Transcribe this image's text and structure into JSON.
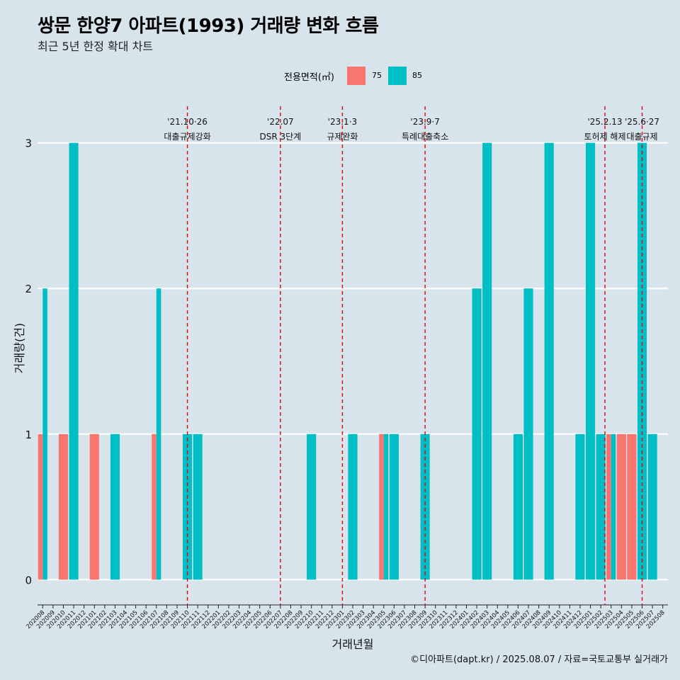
{
  "header": {
    "title": "쌍문 한양7 아파트(1993) 거래량 변화 흐름",
    "subtitle": "최근 5년 한정 확대 차트"
  },
  "legend": {
    "title": "전용면적(㎡)",
    "items": [
      {
        "label": "75",
        "color": "#f8766d"
      },
      {
        "label": "85",
        "color": "#00bfc4"
      }
    ]
  },
  "caption": "©디아파트(dapt.kr) / 2025.08.07 / 자료=국토교통부 실거래가",
  "chart_data": {
    "type": "bar",
    "xlabel": "거래년월",
    "ylabel": "거래량(건)",
    "ylim": [
      -0.12,
      3.3
    ],
    "yticks": [
      0,
      1,
      2,
      3
    ],
    "grid": "horizontal",
    "legend_position": "top",
    "categories": [
      "202008",
      "202009",
      "202010",
      "202011",
      "202012",
      "202101",
      "202102",
      "202103",
      "202104",
      "202105",
      "202106",
      "202107",
      "202108",
      "202109",
      "202110",
      "202111",
      "202112",
      "202201",
      "202202",
      "202203",
      "202204",
      "202205",
      "202206",
      "202207",
      "202208",
      "202209",
      "202210",
      "202211",
      "202212",
      "202301",
      "202302",
      "202303",
      "202304",
      "202305",
      "202306",
      "202307",
      "202308",
      "202309",
      "202310",
      "202311",
      "202312",
      "202401",
      "202402",
      "202403",
      "202404",
      "202405",
      "202406",
      "202407",
      "202408",
      "202409",
      "202410",
      "202411",
      "202412",
      "202501",
      "202502",
      "202503",
      "202504",
      "202505",
      "202506",
      "202507",
      "202508"
    ],
    "series": [
      {
        "name": "75",
        "color": "#f8766d",
        "values": [
          1,
          0,
          1,
          0,
          0,
          1,
          0,
          0,
          0,
          0,
          0,
          1,
          0,
          0,
          0,
          0,
          0,
          0,
          0,
          0,
          0,
          0,
          0,
          0,
          0,
          0,
          0,
          0,
          0,
          0,
          0,
          0,
          0,
          1,
          0,
          0,
          0,
          0,
          0,
          0,
          0,
          0,
          0,
          0,
          0,
          0,
          0,
          0,
          0,
          0,
          0,
          0,
          0,
          0,
          0,
          1,
          1,
          1,
          0,
          0,
          0
        ]
      },
      {
        "name": "85",
        "color": "#00bfc4",
        "values": [
          2,
          0,
          0,
          3,
          0,
          0,
          0,
          1,
          0,
          0,
          0,
          2,
          0,
          0,
          1,
          1,
          0,
          0,
          0,
          0,
          0,
          0,
          0,
          0,
          0,
          0,
          1,
          0,
          0,
          0,
          1,
          0,
          0,
          1,
          1,
          0,
          0,
          1,
          0,
          0,
          0,
          0,
          2,
          3,
          0,
          0,
          1,
          2,
          0,
          3,
          0,
          0,
          1,
          3,
          1,
          1,
          0,
          0,
          3,
          1,
          0
        ]
      }
    ],
    "annotations": [
      {
        "x": "202110",
        "offset": 0.0,
        "label1": "'21.10·26",
        "label2": "대출규제강화"
      },
      {
        "x": "202207",
        "offset": 0.0,
        "label1": "'22.07",
        "label2": "DSR 3단계"
      },
      {
        "x": "202301",
        "offset": 0.0,
        "label1": "'23.1·3",
        "label2": "규제완화"
      },
      {
        "x": "202309",
        "offset": 0.0,
        "label1": "'23.9·7",
        "label2": "특례대출축소"
      },
      {
        "x": "202502",
        "offset": 0.4,
        "label1": "'25.2.13",
        "label2": "토허제 해제"
      },
      {
        "x": "202506",
        "offset": 0.0,
        "label1": "'25.6·27",
        "label2": "대출규제"
      }
    ]
  }
}
